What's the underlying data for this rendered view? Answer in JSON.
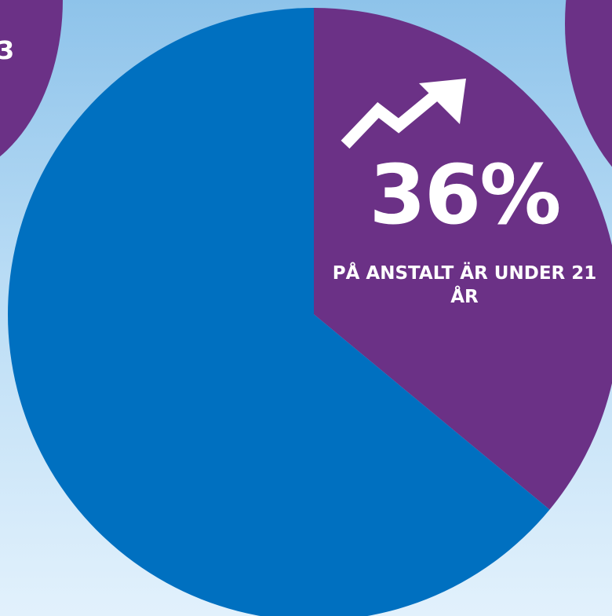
{
  "colors": {
    "accent_purple": "#6b3186",
    "accent_blue": "#0070c0",
    "text": "#ffffff"
  },
  "background": {
    "left_fragment_text": "3"
  },
  "callout": {
    "icon": "trend-up-arrow-icon",
    "value_text": "36%",
    "label": "PÅ ANSTALT ÄR UNDER 21 ÅR"
  },
  "chart_data": {
    "type": "pie",
    "start_angle": "12 o'clock, clockwise",
    "slices": [
      {
        "label": "PÅ ANSTALT ÄR UNDER 21 ÅR",
        "value": 36,
        "color": "#6b3186"
      },
      {
        "label": "",
        "value": 64,
        "color": "#0070c0"
      }
    ]
  }
}
